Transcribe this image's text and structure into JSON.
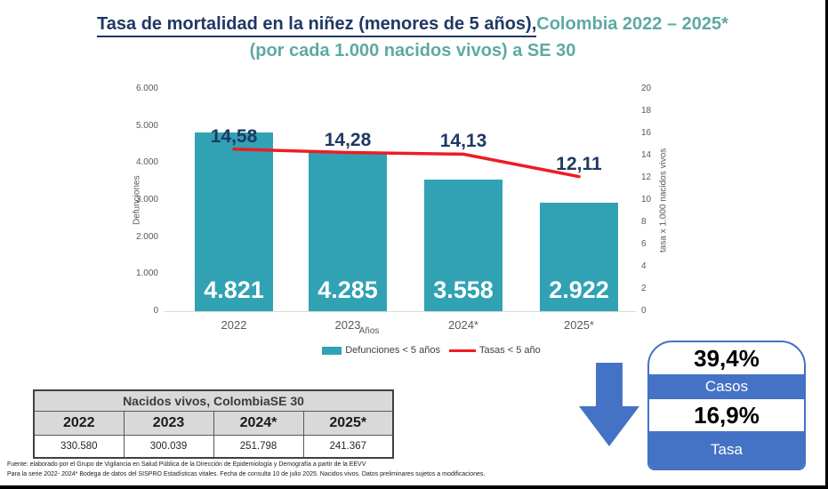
{
  "title": {
    "main": "Tasa de mortalidad en la niñez (menores de 5 años),",
    "accent": "Colombia 2022 – 2025*",
    "subtitle": "(por cada 1.000 nacidos vivos) a SE 30"
  },
  "colors": {
    "navy": "#1F3864",
    "accent_teal": "#5EA9A4",
    "bar_teal": "#31A2B3",
    "line_red": "#ED1C24",
    "blue": "#4472C4",
    "table_header_bg": "#D9D9D9"
  },
  "chart_data": {
    "type": "bar",
    "categories": [
      "2022",
      "2023",
      "2024*",
      "2025*"
    ],
    "series": [
      {
        "name": "Defunciones < 5 años",
        "type": "bar",
        "values": [
          4821,
          4285,
          3558,
          2922
        ],
        "labels": [
          "4.821",
          "4.285",
          "3.558",
          "2.922"
        ]
      },
      {
        "name": "Tasas < 5 año",
        "type": "line",
        "values": [
          14.58,
          14.28,
          14.13,
          12.11
        ],
        "labels": [
          "14,58",
          "14,28",
          "14,13",
          "12,11"
        ]
      }
    ],
    "left_axis": {
      "label": "Defunciones",
      "min": 0,
      "max": 6000,
      "ticks": [
        "6.000",
        "5.000",
        "4.000",
        "3.000",
        "2.000",
        "1.000",
        "0"
      ]
    },
    "right_axis": {
      "label": "tasa x 1.000 nacidos vivos",
      "min": 0,
      "max": 20,
      "ticks": [
        "20",
        "18",
        "16",
        "14",
        "12",
        "10",
        "8",
        "6",
        "4",
        "2",
        "0"
      ]
    },
    "xlabel": "Años",
    "legend_position": "bottom",
    "grid": false
  },
  "table": {
    "title": "Nacidos vivos, ColombiaSE 30",
    "headers": [
      "2022",
      "2023",
      "2024*",
      "2025*"
    ],
    "values": [
      "330.580",
      "300.039",
      "251.798",
      "241.367"
    ]
  },
  "summary": {
    "cases_pct": "39,4%",
    "cases_label": "Casos",
    "rate_pct": "16,9%",
    "rate_label": "Tasa"
  },
  "footer": {
    "line1": "Fuente: elaborado por el Grupo de Vigilancia en Salud Pública de la Dirección de Epidemiología y Demografía a partir de la EEVV",
    "line2": "Para la serie 2022- 2024* Bodega de datos del SISPRO Estadísticas vitales. Fecha de consulta 10 de julio 2025. Nacidos vivos. Datos preliminares sujetos a modificaciones."
  }
}
